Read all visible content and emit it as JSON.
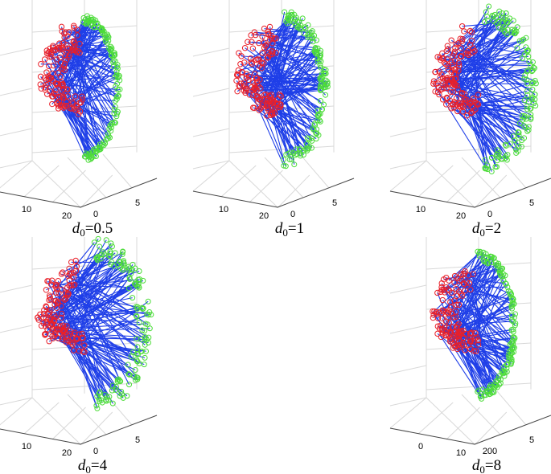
{
  "panels": [
    {
      "caption": {
        "symbol": "d",
        "subscript": "0",
        "text": "=0.5"
      },
      "tick_labels": [
        "10",
        "20",
        "0",
        "5"
      ]
    },
    {
      "caption": {
        "symbol": "d",
        "subscript": "0",
        "text": "=1"
      },
      "tick_labels": [
        "10",
        "20",
        "0",
        "5"
      ]
    },
    {
      "caption": {
        "symbol": "d",
        "subscript": "0",
        "text": "=2"
      },
      "tick_labels": [
        "10",
        "20",
        "0",
        "5"
      ]
    },
    {
      "caption": {
        "symbol": "d",
        "subscript": "0",
        "text": "=4"
      },
      "tick_labels": [
        "10",
        "20",
        "0",
        "5"
      ]
    },
    {
      "caption": {
        "symbol": "d",
        "subscript": "0",
        "text": "=8"
      },
      "tick_labels": [
        "0",
        "10",
        "200",
        "5"
      ]
    }
  ]
}
